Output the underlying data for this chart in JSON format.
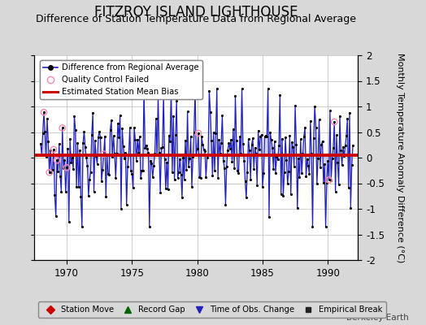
{
  "title": "FITZROY ISLAND LIGHTHOUSE",
  "subtitle": "Difference of Station Temperature Data from Regional Average",
  "ylabel": "Monthly Temperature Anomaly Difference (°C)",
  "ylim": [
    -2,
    2
  ],
  "xlim": [
    1967.5,
    1992.3
  ],
  "xticks": [
    1970,
    1975,
    1980,
    1985,
    1990
  ],
  "yticks": [
    -2,
    -1.5,
    -1,
    -0.5,
    0,
    0.5,
    1,
    1.5,
    2
  ],
  "mean_bias": 0.05,
  "line_color": "#2222bb",
  "line_fill_color": "#8888dd",
  "marker_color": "#000000",
  "bias_color": "#cc0000",
  "qc_color": "#ff88aa",
  "background_color": "#d8d8d8",
  "plot_bg_color": "#ffffff",
  "grid_color": "#bbbbbb",
  "watermark": "Berkeley Earth",
  "legend1_items": [
    {
      "label": "Difference from Regional Average"
    },
    {
      "label": "Quality Control Failed"
    },
    {
      "label": "Estimated Station Mean Bias"
    }
  ],
  "legend2_items": [
    {
      "label": "Station Move"
    },
    {
      "label": "Record Gap"
    },
    {
      "label": "Time of Obs. Change"
    },
    {
      "label": "Empirical Break"
    }
  ],
  "seed": 42,
  "n_months": 288,
  "start_year": 1968.0,
  "qc_indices": [
    3,
    8,
    12,
    15,
    20,
    24,
    58,
    145,
    265,
    270
  ],
  "title_fontsize": 12,
  "subtitle_fontsize": 9,
  "tick_fontsize": 8.5,
  "ylabel_fontsize": 8
}
